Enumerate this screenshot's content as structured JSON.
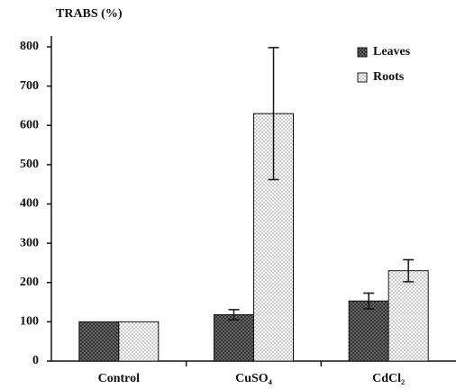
{
  "chart_data": {
    "type": "bar",
    "y_label": "TRABS (%)",
    "categories": [
      "Control",
      "CuSO₄",
      "CdCl₂"
    ],
    "series": [
      {
        "name": "Leaves",
        "color": "#555555",
        "values": [
          100,
          118,
          153
        ],
        "errors": [
          0,
          13,
          20
        ]
      },
      {
        "name": "Roots",
        "color": "#f2f2f2",
        "values": [
          100,
          630,
          230
        ],
        "errors": [
          0,
          168,
          28
        ]
      }
    ],
    "ylim": [
      0,
      800
    ],
    "yticks": [
      0,
      100,
      200,
      300,
      400,
      500,
      600,
      700,
      800
    ],
    "grid": false,
    "legend": "top-right"
  }
}
